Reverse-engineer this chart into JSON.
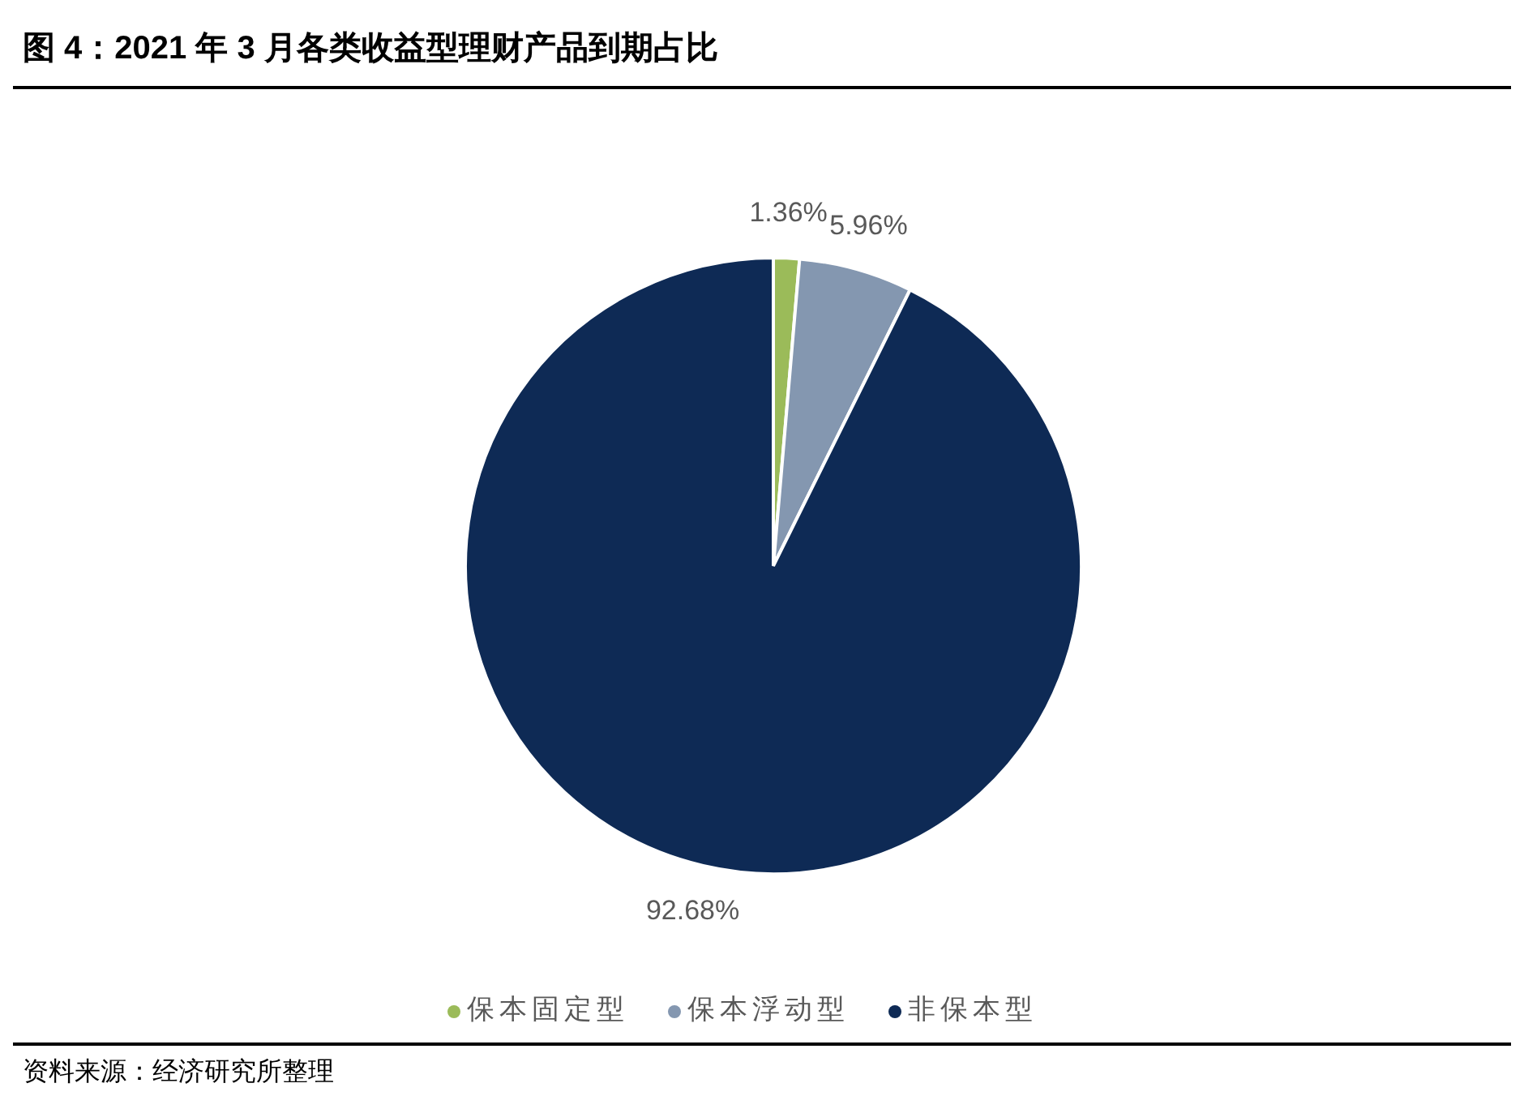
{
  "chart_data": {
    "type": "pie",
    "title": "图 4：2021 年 3 月各类收益型理财产品到期占比",
    "categories": [
      "保本固定型",
      "保本浮动型",
      "非保本型"
    ],
    "values": [
      1.36,
      5.96,
      92.68
    ],
    "value_labels": [
      "1.36%",
      "5.96%",
      "92.68%"
    ],
    "colors": [
      "#9bbb59",
      "#8497b0",
      "#0e2a55"
    ],
    "legend": "bottom",
    "annotations": [
      "资料来源：经济研究所整理"
    ]
  }
}
